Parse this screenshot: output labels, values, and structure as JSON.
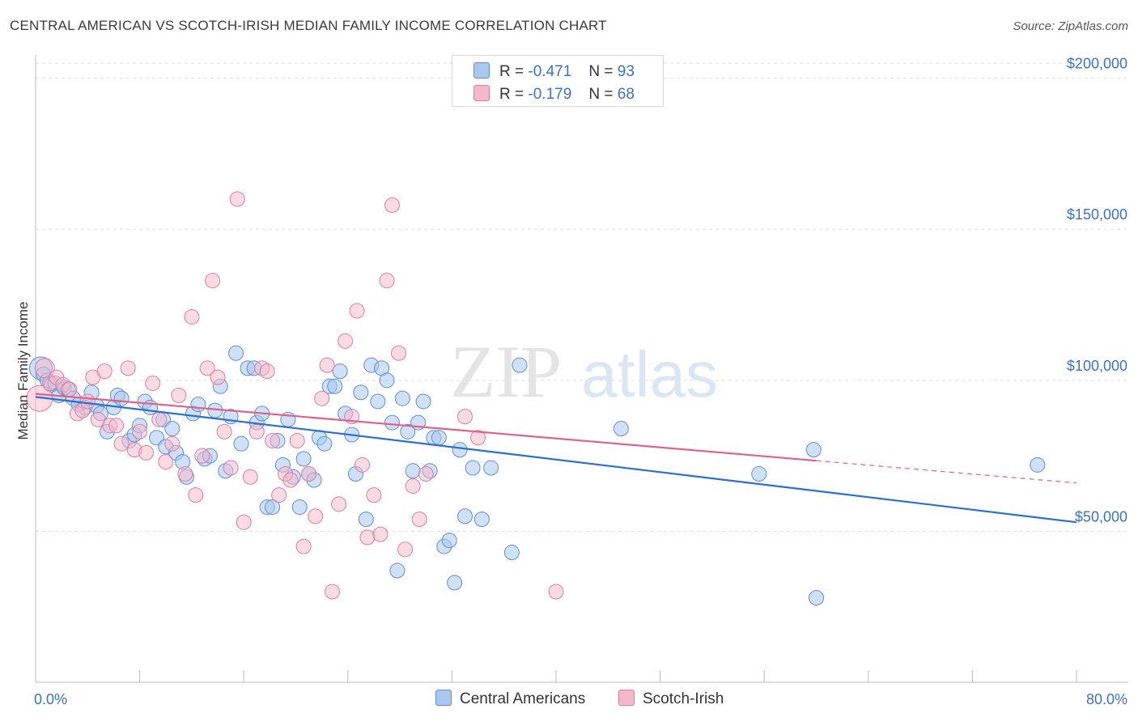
{
  "header": {
    "title": "CENTRAL AMERICAN VS SCOTCH-IRISH MEDIAN FAMILY INCOME CORRELATION CHART",
    "source": "Source: ZipAtlas.com"
  },
  "legend": {
    "r_label": "R =",
    "n_label": "N =",
    "rows": [
      {
        "r": "-0.471",
        "n": "93",
        "color": "#a9c7ef"
      },
      {
        "r": "-0.179",
        "n": "68",
        "color": "#f5b7ca"
      }
    ]
  },
  "watermark": {
    "zip": "ZIP",
    "atlas": "atlas"
  },
  "colors": {
    "blue_fill": "#a9c7ef",
    "blue_stroke": "#5b8fd8",
    "blue_line": "#2a6fd1",
    "pink_fill": "#f5b7ca",
    "pink_stroke": "#e07ba0",
    "pink_line": "#e0608a",
    "tick_label": "#3a72c9",
    "grid": "#dddddd"
  },
  "chart_data": {
    "type": "scatter",
    "title": "CENTRAL AMERICAN VS SCOTCH-IRISH MEDIAN FAMILY INCOME CORRELATION CHART",
    "xlabel": "",
    "ylabel": "Median Family Income",
    "xlim": [
      0,
      80
    ],
    "ylim": [
      0,
      205000
    ],
    "x_tick_labels": [
      "0.0%",
      "80.0%"
    ],
    "y_ticks": [
      50000,
      100000,
      150000,
      200000
    ],
    "y_tick_labels": [
      "$50,000",
      "$100,000",
      "$150,000",
      "$200,000"
    ],
    "grid": true,
    "legend_position": "top-center",
    "series": [
      {
        "name": "Central Americans",
        "r": -0.471,
        "n": 93,
        "trend": {
          "x": [
            0,
            80
          ],
          "y": [
            94500,
            53000
          ]
        },
        "points": [
          [
            0.4,
            104000
          ],
          [
            0.6,
            102000
          ],
          [
            0.9,
            100000
          ],
          [
            1.2,
            98500
          ],
          [
            1.5,
            99000
          ],
          [
            1.8,
            95000
          ],
          [
            2.2,
            97500
          ],
          [
            2.5,
            97000
          ],
          [
            2.9,
            94000
          ],
          [
            3.3,
            92000
          ],
          [
            3.8,
            91000
          ],
          [
            4.3,
            96000
          ],
          [
            4.7,
            91500
          ],
          [
            5.0,
            89000
          ],
          [
            5.5,
            83000
          ],
          [
            6.0,
            91000
          ],
          [
            6.3,
            95000
          ],
          [
            6.6,
            94000
          ],
          [
            7.2,
            80000
          ],
          [
            7.6,
            82000
          ],
          [
            8.0,
            85000
          ],
          [
            8.4,
            93000
          ],
          [
            8.8,
            91000
          ],
          [
            9.3,
            81000
          ],
          [
            9.8,
            87000
          ],
          [
            10.0,
            78000
          ],
          [
            10.5,
            84000
          ],
          [
            10.8,
            76000
          ],
          [
            11.3,
            73000
          ],
          [
            11.6,
            68000
          ],
          [
            12.1,
            89000
          ],
          [
            12.5,
            92000
          ],
          [
            13.0,
            74000
          ],
          [
            13.4,
            75000
          ],
          [
            13.8,
            90000
          ],
          [
            14.2,
            98000
          ],
          [
            14.6,
            70000
          ],
          [
            15.0,
            88000
          ],
          [
            15.4,
            109000
          ],
          [
            15.8,
            79000
          ],
          [
            16.3,
            104000
          ],
          [
            16.8,
            104000
          ],
          [
            17.0,
            86000
          ],
          [
            17.4,
            89000
          ],
          [
            17.8,
            58000
          ],
          [
            18.2,
            58000
          ],
          [
            18.6,
            80000
          ],
          [
            19.0,
            72000
          ],
          [
            19.4,
            87000
          ],
          [
            19.8,
            68000
          ],
          [
            20.3,
            58000
          ],
          [
            20.6,
            74000
          ],
          [
            21.0,
            69000
          ],
          [
            21.4,
            67000
          ],
          [
            21.8,
            81000
          ],
          [
            22.2,
            79000
          ],
          [
            22.6,
            98000
          ],
          [
            23.0,
            98000
          ],
          [
            23.4,
            103000
          ],
          [
            23.8,
            89000
          ],
          [
            24.3,
            82000
          ],
          [
            24.6,
            69000
          ],
          [
            25.0,
            96000
          ],
          [
            25.4,
            54000
          ],
          [
            25.8,
            105000
          ],
          [
            26.3,
            93000
          ],
          [
            26.6,
            104000
          ],
          [
            27.0,
            100000
          ],
          [
            27.4,
            86000
          ],
          [
            27.8,
            37000
          ],
          [
            28.2,
            94000
          ],
          [
            28.6,
            83000
          ],
          [
            29.0,
            70000
          ],
          [
            29.4,
            86000
          ],
          [
            29.8,
            93000
          ],
          [
            30.3,
            70000
          ],
          [
            30.6,
            81000
          ],
          [
            31.0,
            81000
          ],
          [
            31.4,
            45000
          ],
          [
            31.8,
            47000
          ],
          [
            32.2,
            33000
          ],
          [
            32.6,
            77000
          ],
          [
            33.0,
            55000
          ],
          [
            33.6,
            71000
          ],
          [
            34.3,
            54000
          ],
          [
            35.0,
            71000
          ],
          [
            36.6,
            43000
          ],
          [
            37.2,
            105000
          ],
          [
            45.0,
            84000
          ],
          [
            55.6,
            69000
          ],
          [
            59.8,
            77000
          ],
          [
            60.0,
            28000
          ],
          [
            77.0,
            72000
          ]
        ]
      },
      {
        "name": "Scotch-Irish",
        "r": -0.179,
        "n": 68,
        "trend": {
          "x": [
            0,
            80
          ],
          "y": [
            95500,
            66000
          ]
        },
        "trend_solid_until_x": 60,
        "points": [
          [
            0.3,
            94000
          ],
          [
            0.7,
            104000
          ],
          [
            1.1,
            99000
          ],
          [
            1.6,
            101000
          ],
          [
            2.1,
            98500
          ],
          [
            2.6,
            97000
          ],
          [
            3.2,
            89000
          ],
          [
            3.6,
            90000
          ],
          [
            4.0,
            93000
          ],
          [
            4.4,
            101000
          ],
          [
            4.8,
            87000
          ],
          [
            5.3,
            103000
          ],
          [
            5.7,
            85000
          ],
          [
            6.2,
            85000
          ],
          [
            6.6,
            79000
          ],
          [
            7.1,
            104000
          ],
          [
            7.6,
            77000
          ],
          [
            8.0,
            83000
          ],
          [
            8.5,
            76000
          ],
          [
            9.0,
            99000
          ],
          [
            9.5,
            87000
          ],
          [
            10.0,
            73000
          ],
          [
            10.5,
            79000
          ],
          [
            11.0,
            95000
          ],
          [
            11.5,
            69000
          ],
          [
            12.0,
            121000
          ],
          [
            12.3,
            62000
          ],
          [
            12.8,
            75000
          ],
          [
            13.2,
            104000
          ],
          [
            13.6,
            133000
          ],
          [
            14.0,
            101000
          ],
          [
            14.5,
            83000
          ],
          [
            15.0,
            71000
          ],
          [
            15.5,
            160000
          ],
          [
            16.0,
            53000
          ],
          [
            16.5,
            68000
          ],
          [
            17.0,
            83000
          ],
          [
            17.4,
            104000
          ],
          [
            17.8,
            103000
          ],
          [
            18.2,
            80000
          ],
          [
            18.7,
            62000
          ],
          [
            19.2,
            69000
          ],
          [
            19.6,
            67000
          ],
          [
            20.1,
            80000
          ],
          [
            20.6,
            45000
          ],
          [
            21.0,
            69000
          ],
          [
            21.5,
            55000
          ],
          [
            22.0,
            94000
          ],
          [
            22.4,
            105000
          ],
          [
            22.8,
            30000
          ],
          [
            23.3,
            59000
          ],
          [
            23.8,
            113000
          ],
          [
            24.3,
            88000
          ],
          [
            24.7,
            123000
          ],
          [
            25.1,
            72000
          ],
          [
            25.5,
            48000
          ],
          [
            26.0,
            62000
          ],
          [
            26.5,
            49000
          ],
          [
            27.0,
            133000
          ],
          [
            27.4,
            158000
          ],
          [
            27.9,
            109000
          ],
          [
            28.4,
            44000
          ],
          [
            29.0,
            65000
          ],
          [
            29.5,
            54000
          ],
          [
            30.0,
            69000
          ],
          [
            33.0,
            88000
          ],
          [
            34.0,
            81000
          ],
          [
            40.0,
            30000
          ]
        ]
      }
    ]
  },
  "bottom_legend": [
    {
      "label": "Central Americans",
      "color": "#a9c7ef"
    },
    {
      "label": "Scotch-Irish",
      "color": "#f5b7ca"
    }
  ]
}
